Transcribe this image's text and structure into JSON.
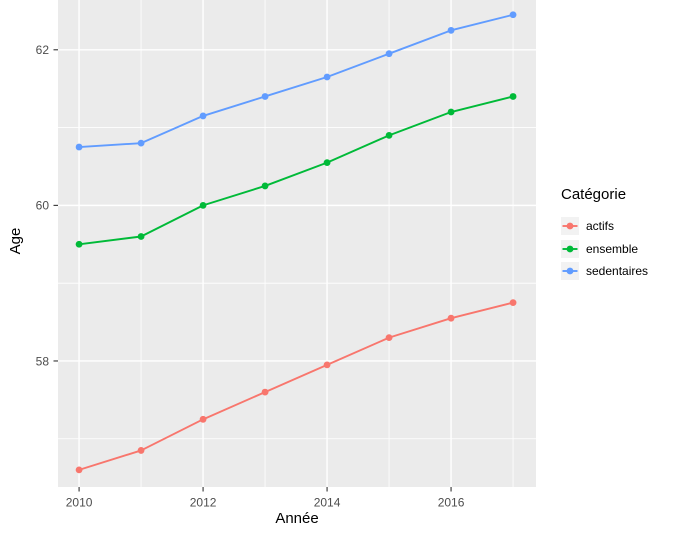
{
  "chart_data": {
    "type": "line",
    "title": "",
    "xlabel": "Année",
    "ylabel": "Age",
    "x": [
      2010,
      2011,
      2012,
      2013,
      2014,
      2015,
      2016,
      2017
    ],
    "series": [
      {
        "name": "actifs",
        "color": "#F8766D",
        "values": [
          56.6,
          56.85,
          57.25,
          57.6,
          57.95,
          58.3,
          58.55,
          58.75
        ]
      },
      {
        "name": "ensemble",
        "color": "#00BA38",
        "values": [
          59.5,
          59.6,
          60.0,
          60.25,
          60.55,
          60.9,
          61.2,
          61.4
        ]
      },
      {
        "name": "sedentaires",
        "color": "#619CFF",
        "values": [
          60.75,
          60.8,
          61.15,
          61.4,
          61.65,
          61.95,
          62.25,
          62.45
        ]
      }
    ],
    "x_ticks": [
      2010,
      2012,
      2014,
      2016
    ],
    "x_minor_gridlines": [
      2011,
      2013,
      2015,
      2017
    ],
    "y_ticks": [
      58,
      60,
      62
    ],
    "y_minor_gridlines": [
      57,
      59,
      61
    ],
    "xlim": [
      2009.66,
      2017.37
    ],
    "ylim": [
      56.38,
      62.64
    ],
    "grid": true,
    "legend_position": "right",
    "legend_title": "Catégorie"
  },
  "colors": {
    "panel_bg": "#EBEBEB",
    "gridline": "#FFFFFF",
    "tick_mark": "#333333",
    "tick_label": "#4D4D4D",
    "axis_title": "#000000",
    "legend_key_bg": "#F2F2F2",
    "page_bg": "#FFFFFF"
  }
}
